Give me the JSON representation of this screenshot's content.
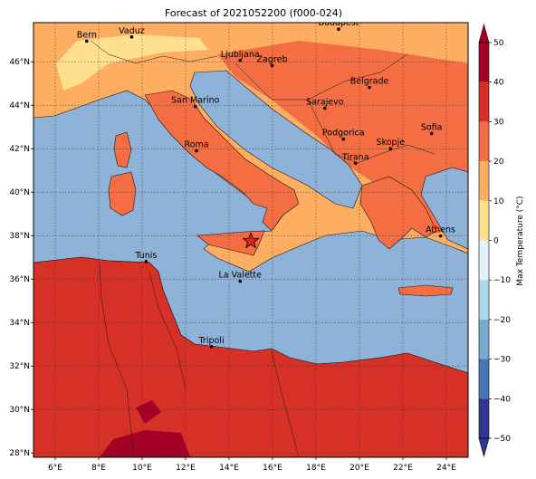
{
  "title": "Forecast of 2021052200 (f000-024)",
  "map": {
    "lon_range": [
      5,
      25
    ],
    "lat_range": [
      27.8,
      47.8
    ],
    "x_ticks": [
      {
        "lon": 6,
        "label": "6°E"
      },
      {
        "lon": 8,
        "label": "8°E"
      },
      {
        "lon": 10,
        "label": "10°E"
      },
      {
        "lon": 12,
        "label": "12°E"
      },
      {
        "lon": 14,
        "label": "14°E"
      },
      {
        "lon": 16,
        "label": "16°E"
      },
      {
        "lon": 18,
        "label": "18°E"
      },
      {
        "lon": 20,
        "label": "20°E"
      },
      {
        "lon": 22,
        "label": "22°E"
      },
      {
        "lon": 24,
        "label": "24°E"
      }
    ],
    "y_ticks": [
      {
        "lat": 28,
        "label": "28°N"
      },
      {
        "lat": 30,
        "label": "30°N"
      },
      {
        "lat": 32,
        "label": "32°N"
      },
      {
        "lat": 34,
        "label": "34°N"
      },
      {
        "lat": 36,
        "label": "36°N"
      },
      {
        "lat": 38,
        "label": "38°N"
      },
      {
        "lat": 40,
        "label": "40°N"
      },
      {
        "lat": 42,
        "label": "42°N"
      },
      {
        "lat": 44,
        "label": "44°N"
      },
      {
        "lat": 46,
        "label": "46°N"
      }
    ],
    "gridlines": true,
    "cities": [
      {
        "name": "Bern",
        "lon": 7.45,
        "lat": 46.95
      },
      {
        "name": "Vaduz",
        "lon": 9.52,
        "lat": 47.14
      },
      {
        "name": "Budapest",
        "lon": 19.04,
        "lat": 47.5
      },
      {
        "name": "Ljubljana",
        "lon": 14.51,
        "lat": 46.06
      },
      {
        "name": "Zagreb",
        "lon": 15.98,
        "lat": 45.82
      },
      {
        "name": "San Marino",
        "lon": 12.45,
        "lat": 43.94
      },
      {
        "name": "Belgrade",
        "lon": 20.46,
        "lat": 44.82
      },
      {
        "name": "Sarajevo",
        "lon": 18.41,
        "lat": 43.86
      },
      {
        "name": "Roma",
        "lon": 12.5,
        "lat": 41.9
      },
      {
        "name": "Podgorica",
        "lon": 19.26,
        "lat": 42.44
      },
      {
        "name": "Sofia",
        "lon": 23.32,
        "lat": 42.7
      },
      {
        "name": "Skopje",
        "lon": 21.43,
        "lat": 42.0
      },
      {
        "name": "Tirana",
        "lon": 19.82,
        "lat": 41.33
      },
      {
        "name": "Athens",
        "lon": 23.73,
        "lat": 37.98
      },
      {
        "name": "Tunis",
        "lon": 10.18,
        "lat": 36.81
      },
      {
        "name": "La Valette",
        "lon": 14.51,
        "lat": 35.9
      },
      {
        "name": "Tripoli",
        "lon": 13.19,
        "lat": 32.89
      }
    ],
    "marker": {
      "symbol": "star",
      "lon": 15.0,
      "lat": 37.75,
      "color": "#e2231a"
    },
    "sea_color": "#8fb2d8"
  },
  "colorbar": {
    "label": "Max Temperature (°C)",
    "ticks": [
      "50",
      "40",
      "30",
      "20",
      "10",
      "0",
      "−10",
      "−20",
      "−30",
      "−40",
      "−50"
    ],
    "colors": [
      "#a50026",
      "#d73027",
      "#f46d43",
      "#fdae61",
      "#fee090",
      "#e0f3f8",
      "#abd9e9",
      "#74add1",
      "#4575b4",
      "#313695"
    ],
    "levels": [
      50,
      40,
      30,
      20,
      10,
      0,
      -10,
      -20,
      -30,
      -40,
      -50
    ]
  }
}
